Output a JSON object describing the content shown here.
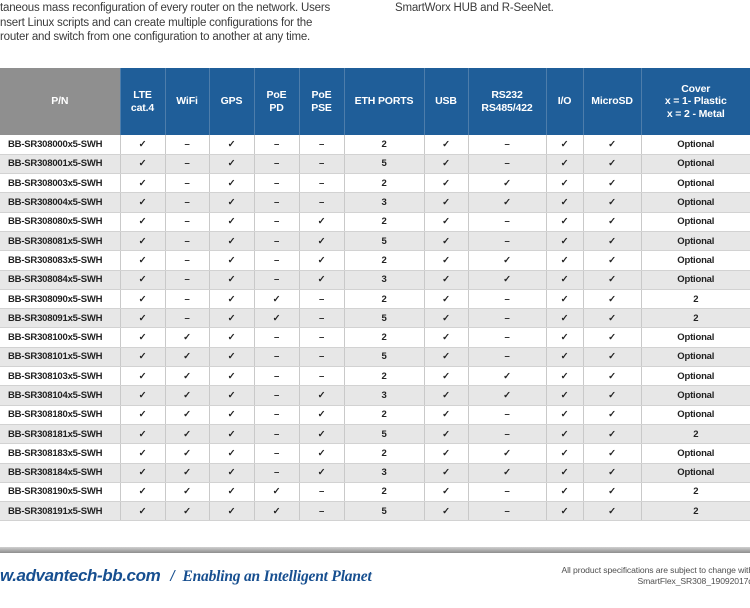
{
  "intro": {
    "left_lines": [
      "taneous mass reconfiguration of every router on the network. Users",
      "nsert Linux scripts and can create multiple configurations for the",
      "router and switch from one configuration to another at any time."
    ],
    "right_line": "SmartWorx HUB and R-SeeNet."
  },
  "table": {
    "columns": [
      "P/N",
      "LTE\ncat.4",
      "WiFi",
      "GPS",
      "PoE\nPD",
      "PoE\nPSE",
      "ETH PORTS",
      "USB",
      "RS232\nRS485/422",
      "I/O",
      "MicroSD",
      "Cover\nx = 1- Plastic\nx = 2 - Metal"
    ],
    "rows": [
      {
        "pn": "BB-SR308000x5-SWH",
        "cells": [
          "✓",
          "–",
          "✓",
          "–",
          "–",
          "2",
          "✓",
          "–",
          "✓",
          "✓",
          "Optional"
        ]
      },
      {
        "pn": "BB-SR308001x5-SWH",
        "cells": [
          "✓",
          "–",
          "✓",
          "–",
          "–",
          "5",
          "✓",
          "–",
          "✓",
          "✓",
          "Optional"
        ]
      },
      {
        "pn": "BB-SR308003x5-SWH",
        "cells": [
          "✓",
          "–",
          "✓",
          "–",
          "–",
          "2",
          "✓",
          "✓",
          "✓",
          "✓",
          "Optional"
        ]
      },
      {
        "pn": "BB-SR308004x5-SWH",
        "cells": [
          "✓",
          "–",
          "✓",
          "–",
          "–",
          "3",
          "✓",
          "✓",
          "✓",
          "✓",
          "Optional"
        ]
      },
      {
        "pn": "BB-SR308080x5-SWH",
        "cells": [
          "✓",
          "–",
          "✓",
          "–",
          "✓",
          "2",
          "✓",
          "–",
          "✓",
          "✓",
          "Optional"
        ]
      },
      {
        "pn": "BB-SR308081x5-SWH",
        "cells": [
          "✓",
          "–",
          "✓",
          "–",
          "✓",
          "5",
          "✓",
          "–",
          "✓",
          "✓",
          "Optional"
        ]
      },
      {
        "pn": "BB-SR308083x5-SWH",
        "cells": [
          "✓",
          "–",
          "✓",
          "–",
          "✓",
          "2",
          "✓",
          "✓",
          "✓",
          "✓",
          "Optional"
        ]
      },
      {
        "pn": "BB-SR308084x5-SWH",
        "cells": [
          "✓",
          "–",
          "✓",
          "–",
          "✓",
          "3",
          "✓",
          "✓",
          "✓",
          "✓",
          "Optional"
        ]
      },
      {
        "pn": "BB-SR308090x5-SWH",
        "cells": [
          "✓",
          "–",
          "✓",
          "✓",
          "–",
          "2",
          "✓",
          "–",
          "✓",
          "✓",
          "2"
        ]
      },
      {
        "pn": "BB-SR308091x5-SWH",
        "cells": [
          "✓",
          "–",
          "✓",
          "✓",
          "–",
          "5",
          "✓",
          "–",
          "✓",
          "✓",
          "2"
        ]
      },
      {
        "pn": "BB-SR308100x5-SWH",
        "cells": [
          "✓",
          "✓",
          "✓",
          "–",
          "–",
          "2",
          "✓",
          "–",
          "✓",
          "✓",
          "Optional"
        ]
      },
      {
        "pn": "BB-SR308101x5-SWH",
        "cells": [
          "✓",
          "✓",
          "✓",
          "–",
          "–",
          "5",
          "✓",
          "–",
          "✓",
          "✓",
          "Optional"
        ]
      },
      {
        "pn": "BB-SR308103x5-SWH",
        "cells": [
          "✓",
          "✓",
          "✓",
          "–",
          "–",
          "2",
          "✓",
          "✓",
          "✓",
          "✓",
          "Optional"
        ]
      },
      {
        "pn": "BB-SR308104x5-SWH",
        "cells": [
          "✓",
          "✓",
          "✓",
          "–",
          "✓",
          "3",
          "✓",
          "✓",
          "✓",
          "✓",
          "Optional"
        ]
      },
      {
        "pn": "BB-SR308180x5-SWH",
        "cells": [
          "✓",
          "✓",
          "✓",
          "–",
          "✓",
          "2",
          "✓",
          "–",
          "✓",
          "✓",
          "Optional"
        ]
      },
      {
        "pn": "BB-SR308181x5-SWH",
        "cells": [
          "✓",
          "✓",
          "✓",
          "–",
          "✓",
          "5",
          "✓",
          "–",
          "✓",
          "✓",
          "2"
        ]
      },
      {
        "pn": "BB-SR308183x5-SWH",
        "cells": [
          "✓",
          "✓",
          "✓",
          "–",
          "✓",
          "2",
          "✓",
          "✓",
          "✓",
          "✓",
          "Optional"
        ]
      },
      {
        "pn": "BB-SR308184x5-SWH",
        "cells": [
          "✓",
          "✓",
          "✓",
          "–",
          "✓",
          "3",
          "✓",
          "✓",
          "✓",
          "✓",
          "Optional"
        ]
      },
      {
        "pn": "BB-SR308190x5-SWH",
        "cells": [
          "✓",
          "✓",
          "✓",
          "✓",
          "–",
          "2",
          "✓",
          "–",
          "✓",
          "✓",
          "2"
        ]
      },
      {
        "pn": "BB-SR308191x5-SWH",
        "cells": [
          "✓",
          "✓",
          "✓",
          "✓",
          "–",
          "5",
          "✓",
          "–",
          "✓",
          "✓",
          "2"
        ]
      }
    ]
  },
  "footer": {
    "url": "w.advantech-bb.com",
    "separator": "/",
    "slogan": "Enabling an Intelligent Planet",
    "note_line1": "All product specifications are subject to change with",
    "note_line2": "SmartFlex_SR308_19092017d"
  },
  "colors": {
    "header_blue": "#1f5e99",
    "header_gray": "#8f8f8f",
    "alt_row_gray": "#e7e7e7",
    "footer_blue": "#174f90",
    "divider_gray": "#8d8d8d"
  }
}
